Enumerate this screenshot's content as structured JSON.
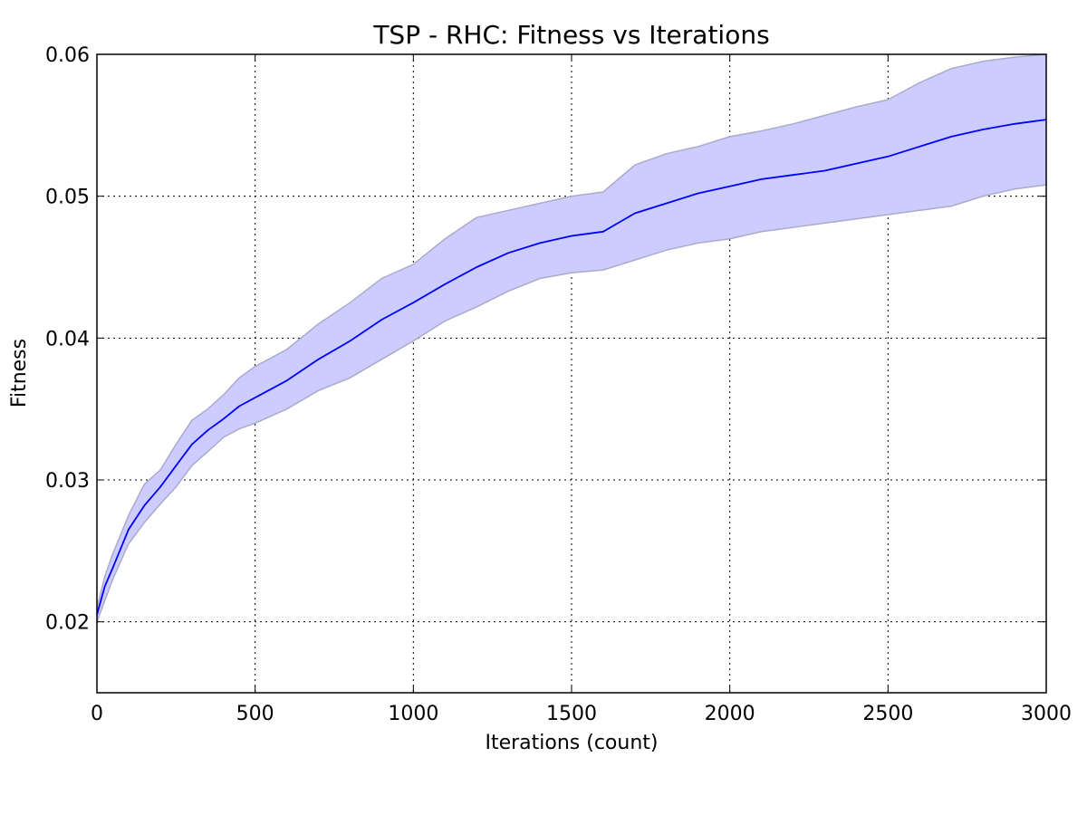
{
  "chart_data": {
    "type": "line",
    "title": "TSP - RHC: Fitness vs Iterations",
    "xlabel": "Iterations (count)",
    "ylabel": "Fitness",
    "xlim": [
      0,
      3000
    ],
    "ylim": [
      0.015,
      0.06
    ],
    "xticks": [
      0,
      500,
      1000,
      1500,
      2000,
      2500,
      3000
    ],
    "xtick_labels": [
      "0",
      "500",
      "1000",
      "1500",
      "2000",
      "2500",
      "3000"
    ],
    "yticks": [
      0.02,
      0.03,
      0.04,
      0.05,
      0.06
    ],
    "ytick_labels": [
      "0.02",
      "0.03",
      "0.04",
      "0.05",
      "0.06"
    ],
    "grid": true,
    "legend": "none",
    "colors": {
      "line": "#0000ff",
      "band_fill": "#ccccff",
      "band_edge": "#aaaacc"
    },
    "series": [
      {
        "x": [
          0,
          25,
          50,
          100,
          150,
          200,
          250,
          300,
          350,
          400,
          450,
          500,
          600,
          700,
          800,
          900,
          1000,
          1100,
          1200,
          1300,
          1400,
          1500,
          1600,
          1700,
          1800,
          1900,
          2000,
          2100,
          2200,
          2300,
          2400,
          2500,
          2600,
          2700,
          2800,
          2900,
          3000
        ],
        "mean": [
          0.0205,
          0.0225,
          0.0238,
          0.0265,
          0.0282,
          0.0295,
          0.031,
          0.0325,
          0.0335,
          0.0343,
          0.0352,
          0.0358,
          0.037,
          0.0385,
          0.0398,
          0.0413,
          0.0425,
          0.0438,
          0.045,
          0.046,
          0.0467,
          0.0472,
          0.0475,
          0.0488,
          0.0495,
          0.0502,
          0.0507,
          0.0512,
          0.0515,
          0.0518,
          0.0523,
          0.0528,
          0.0535,
          0.0542,
          0.0547,
          0.0551,
          0.0554
        ],
        "upper": [
          0.021,
          0.0232,
          0.0248,
          0.0275,
          0.0297,
          0.0307,
          0.0325,
          0.0342,
          0.035,
          0.036,
          0.0372,
          0.038,
          0.0392,
          0.041,
          0.0425,
          0.0442,
          0.0452,
          0.047,
          0.0485,
          0.049,
          0.0495,
          0.05,
          0.0503,
          0.0522,
          0.053,
          0.0535,
          0.0542,
          0.0546,
          0.0551,
          0.0557,
          0.0563,
          0.0568,
          0.058,
          0.059,
          0.0595,
          0.0598,
          0.06
        ],
        "lower": [
          0.02,
          0.0215,
          0.023,
          0.0255,
          0.027,
          0.0283,
          0.0295,
          0.031,
          0.032,
          0.033,
          0.0336,
          0.034,
          0.035,
          0.0363,
          0.0372,
          0.0385,
          0.0398,
          0.0412,
          0.0422,
          0.0433,
          0.0442,
          0.0446,
          0.0448,
          0.0455,
          0.0462,
          0.0467,
          0.047,
          0.0475,
          0.0478,
          0.0481,
          0.0484,
          0.0487,
          0.049,
          0.0493,
          0.05,
          0.0505,
          0.0508
        ]
      }
    ]
  }
}
